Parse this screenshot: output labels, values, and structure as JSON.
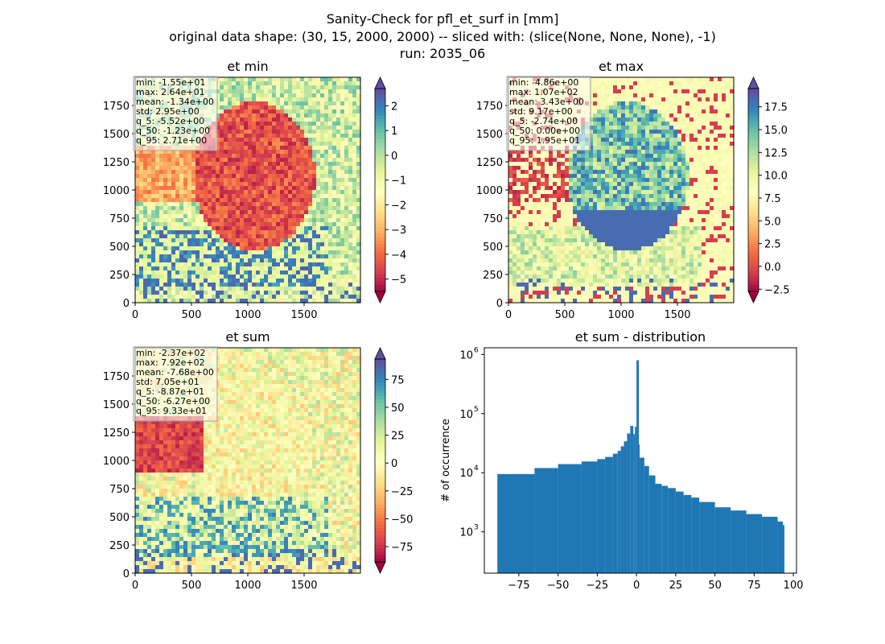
{
  "figure": {
    "title_line1": "Sanity-Check for pfl_et_surf in [mm]",
    "title_line2": "original data shape: (30, 15, 2000, 2000) -- sliced with: (slice(None, None, None), -1)",
    "title_line3": "run: 2035_06"
  },
  "panels": [
    {
      "title": "et min",
      "cmap": "Spectral",
      "clim": [
        -5.5,
        2.7
      ],
      "xticks": [
        "0",
        "500",
        "1000",
        "1500"
      ],
      "yticks": [
        "0",
        "250",
        "500",
        "750",
        "1000",
        "1250",
        "1500",
        "1750"
      ],
      "cbar_ticks": [
        {
          "value": -5,
          "label": "−5"
        },
        {
          "value": -4,
          "label": "−4"
        },
        {
          "value": -3,
          "label": "−3"
        },
        {
          "value": -2,
          "label": "−2"
        },
        {
          "value": -1,
          "label": "−1"
        },
        {
          "value": 0,
          "label": "0"
        },
        {
          "value": 1,
          "label": "1"
        },
        {
          "value": 2,
          "label": "2"
        }
      ],
      "stats": [
        "min: -1.55e+01",
        "max: 2.64e+01",
        "mean: -1.34e+00",
        "std: 2.95e+00",
        "q_5: -5.52e+00",
        "q_50: -1.23e+00",
        "q_95: 2.71e+00"
      ],
      "palette": [
        "#9e0142",
        "#d53e4f",
        "#f46d43",
        "#fdae61",
        "#fee08b",
        "#ffffbf",
        "#e6f598",
        "#abdda4",
        "#66c2a5",
        "#3288bd",
        "#5e4fa2"
      ]
    },
    {
      "title": "et max",
      "cmap": "Spectral",
      "clim": [
        -2.74,
        19.5
      ],
      "xticks": [
        "0",
        "500",
        "1000",
        "1500"
      ],
      "yticks": [
        "0",
        "250",
        "500",
        "750",
        "1000",
        "1250",
        "1500",
        "1750"
      ],
      "cbar_ticks": [
        {
          "value": -2.5,
          "label": "−2.5"
        },
        {
          "value": 0,
          "label": "0.0"
        },
        {
          "value": 2.5,
          "label": "2.5"
        },
        {
          "value": 5,
          "label": "5.0"
        },
        {
          "value": 7.5,
          "label": "7.5"
        },
        {
          "value": 10,
          "label": "10.0"
        },
        {
          "value": 12.5,
          "label": "12.5"
        },
        {
          "value": 15,
          "label": "15.0"
        },
        {
          "value": 17.5,
          "label": "17.5"
        }
      ],
      "stats": [
        "min: -4.86e+00",
        "max: 1.07e+02",
        "mean: 3.43e+00",
        "std: 9.17e+00",
        "q_5: -2.74e+00",
        "q_50: 0.00e+00",
        "q_95: 1.95e+01"
      ],
      "palette": [
        "#9e0142",
        "#d53e4f",
        "#f46d43",
        "#fdae61",
        "#fee08b",
        "#ffffbf",
        "#e6f598",
        "#abdda4",
        "#66c2a5",
        "#3288bd",
        "#5e4fa2"
      ]
    },
    {
      "title": "et sum",
      "cmap": "Spectral",
      "clim": [
        -88.7,
        93.3
      ],
      "xticks": [
        "0",
        "500",
        "1000",
        "1500"
      ],
      "yticks": [
        "0",
        "250",
        "500",
        "750",
        "1000",
        "1250",
        "1500",
        "1750"
      ],
      "cbar_ticks": [
        {
          "value": -75,
          "label": "−75"
        },
        {
          "value": -50,
          "label": "−50"
        },
        {
          "value": -25,
          "label": "−25"
        },
        {
          "value": 0,
          "label": "0"
        },
        {
          "value": 25,
          "label": "25"
        },
        {
          "value": 50,
          "label": "50"
        },
        {
          "value": 75,
          "label": "75"
        }
      ],
      "stats": [
        "min: -2.37e+02",
        "max: 7.92e+02",
        "mean: -7.68e+00",
        "std: 7.05e+01",
        "q_5: -8.87e+01",
        "q_50: -6.27e+00",
        "q_95: 9.33e+01"
      ],
      "palette": [
        "#9e0142",
        "#d53e4f",
        "#f46d43",
        "#fdae61",
        "#fee08b",
        "#ffffbf",
        "#e6f598",
        "#abdda4",
        "#66c2a5",
        "#3288bd",
        "#5e4fa2"
      ]
    }
  ],
  "chart_data": {
    "type": "bar",
    "title": "et sum - distribution",
    "xlabel": "",
    "ylabel": "# of occurrence",
    "yscale": "log",
    "xlim": [
      -97,
      102
    ],
    "ylim": [
      200,
      1300000
    ],
    "color": "#1f77b4",
    "xticks": [
      {
        "value": -75,
        "label": "−75"
      },
      {
        "value": -50,
        "label": "−50"
      },
      {
        "value": -25,
        "label": "−25"
      },
      {
        "value": 0,
        "label": "0"
      },
      {
        "value": 25,
        "label": "25"
      },
      {
        "value": 50,
        "label": "50"
      },
      {
        "value": 75,
        "label": "75"
      },
      {
        "value": 100,
        "label": "100"
      }
    ],
    "yticks": [
      {
        "value": 1000,
        "label": "10",
        "exp": "3"
      },
      {
        "value": 10000,
        "label": "10",
        "exp": "4"
      },
      {
        "value": 100000,
        "label": "10",
        "exp": "5"
      },
      {
        "value": 1000000,
        "label": "10",
        "exp": "6"
      }
    ],
    "x": [
      -88.7,
      -65,
      -50,
      -35,
      -25,
      -20,
      -15,
      -12,
      -10,
      -8,
      -6,
      -4,
      -2,
      -1,
      0,
      1,
      2,
      5,
      8,
      12,
      16,
      20,
      25,
      30,
      35,
      40,
      50,
      60,
      70,
      80,
      90,
      93.3
    ],
    "values": [
      9500,
      12000,
      14000,
      15500,
      17000,
      18500,
      21000,
      23500,
      28000,
      34000,
      46000,
      62000,
      45000,
      60000,
      800000,
      30000,
      18000,
      13000,
      9000,
      6500,
      6000,
      5500,
      4800,
      4200,
      3800,
      3200,
      2600,
      2300,
      2000,
      1800,
      1500,
      1300
    ]
  }
}
